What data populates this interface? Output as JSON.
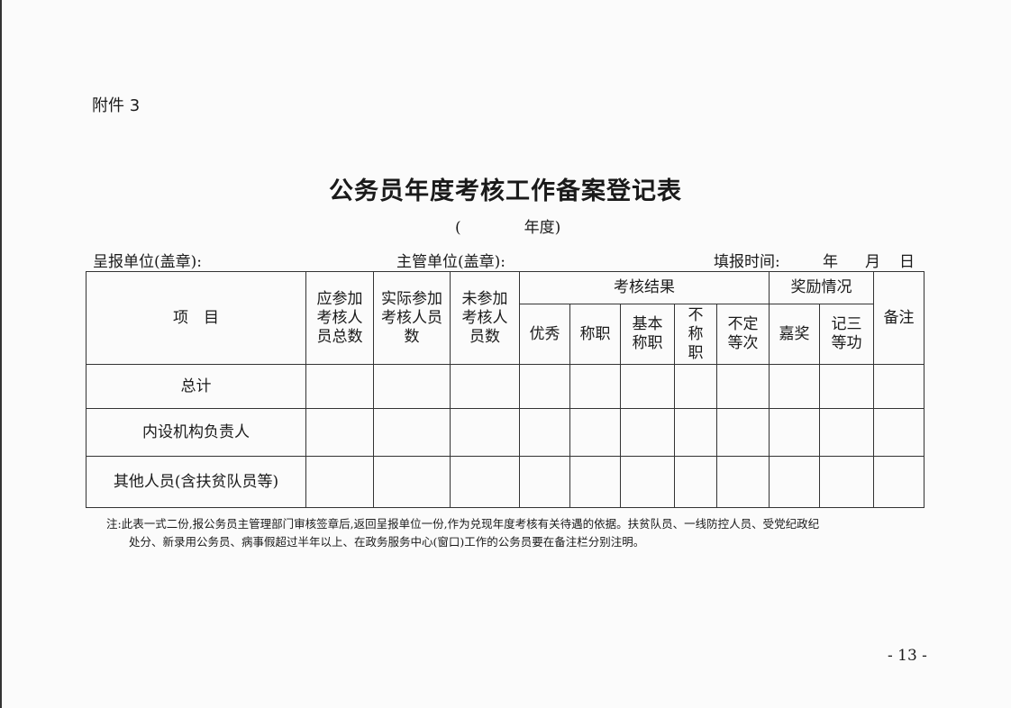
{
  "attachment_label": "附件 3",
  "title": "公务员年度考核工作备案登记表",
  "year_line": {
    "open": "(",
    "label": "年度)"
  },
  "header_fields": {
    "reporting_unit": "呈报单位(盖章):",
    "supervising_unit": "主管单位(盖章):",
    "fill_time": "填报时间:",
    "year": "年",
    "month": "月",
    "day": "日"
  },
  "table": {
    "item_header": "项　目",
    "col_should": "应参加考核人员总数",
    "col_actual": "实际参加考核人员数",
    "col_absent": "未参加考核人员数",
    "group_result": "考核结果",
    "result_cols": [
      "优秀",
      "称职",
      "基本称职",
      "不称职",
      "不定等次"
    ],
    "group_reward": "奖励情况",
    "reward_cols": [
      "嘉奖",
      "记三等功"
    ],
    "col_remark": "备注",
    "rows": [
      "总计",
      "内设机构负责人",
      "其他人员(含扶贫队员等)"
    ]
  },
  "note": {
    "line1": "注:此表一式二份,报公务员主管理部门审核签章后,返回呈报单位一份,作为兑现年度考核有关待遇的依据。扶贫队员、一线防控人员、受党纪政纪",
    "line2": "处分、新录用公务员、病事假超过半年以上、在政务服务中心(窗口)工作的公务员要在备注栏分别注明。"
  },
  "page_number": "- 13 -"
}
